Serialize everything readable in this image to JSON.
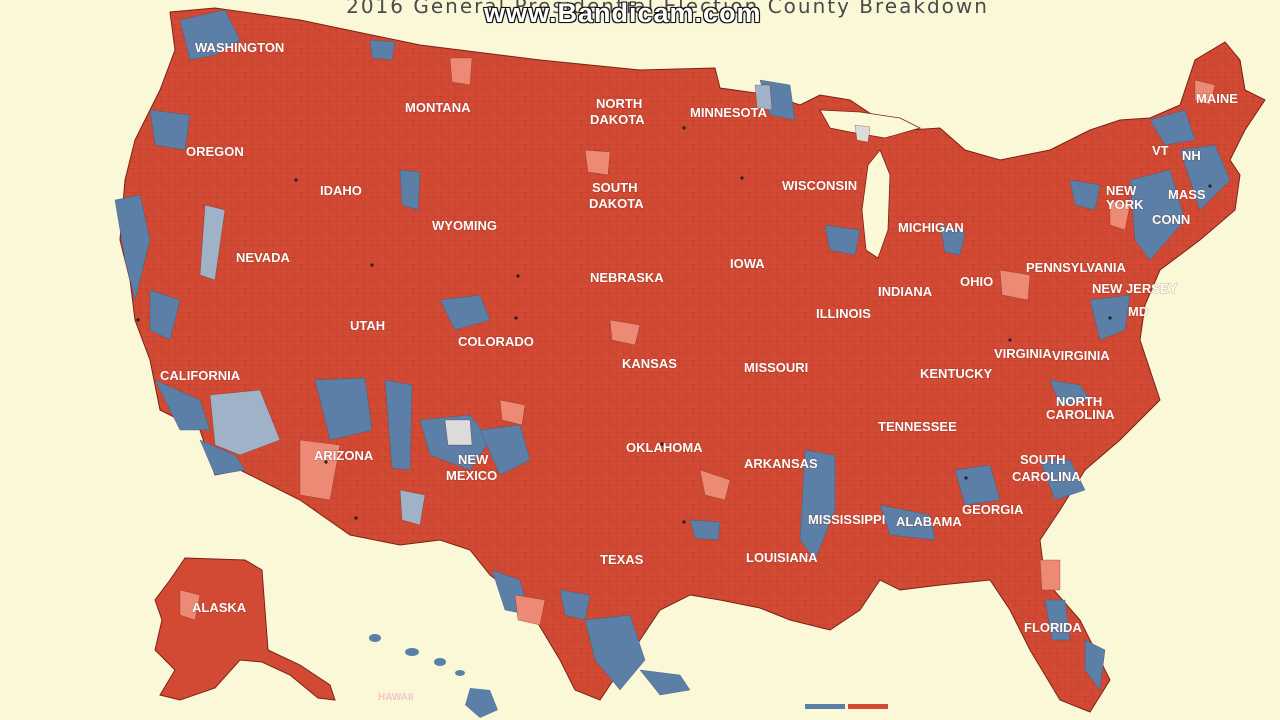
{
  "title": "2016 General Presidential Election County Breakdown",
  "watermark": "www.Bandicam.com",
  "colors": {
    "background": "#fbf8d8",
    "republican": "#d24a34",
    "republican_light": "#ec8a76",
    "democrat": "#5b7fa6",
    "democrat_light": "#9fb2c8",
    "county_line": "#7a2216"
  },
  "states": [
    {
      "label": "WASHINGTON"
    },
    {
      "label": "OREGON"
    },
    {
      "label": "IDAHO"
    },
    {
      "label": "MONTANA"
    },
    {
      "label": "NORTH"
    },
    {
      "label": "DAKOTA"
    },
    {
      "label": "SOUTH"
    },
    {
      "label": "DAKOTA"
    },
    {
      "label": "MINNESOTA"
    },
    {
      "label": "WYOMING"
    },
    {
      "label": "NEVADA"
    },
    {
      "label": "UTAH"
    },
    {
      "label": "COLORADO"
    },
    {
      "label": "NEBRASKA"
    },
    {
      "label": "KANSAS"
    },
    {
      "label": "IOWA"
    },
    {
      "label": "WISCONSIN"
    },
    {
      "label": "MICHIGAN"
    },
    {
      "label": "ILLINOIS"
    },
    {
      "label": "INDIANA"
    },
    {
      "label": "OHIO"
    },
    {
      "label": "MISSOURI"
    },
    {
      "label": "KENTUCKY"
    },
    {
      "label": "CALIFORNIA"
    },
    {
      "label": "ARIZONA"
    },
    {
      "label": "NEW"
    },
    {
      "label": "MEXICO"
    },
    {
      "label": "OKLAHOMA"
    },
    {
      "label": "TEXAS"
    },
    {
      "label": "ARKANSAS"
    },
    {
      "label": "LOUISIANA"
    },
    {
      "label": "MISSISSIPPI"
    },
    {
      "label": "ALABAMA"
    },
    {
      "label": "GEORGIA"
    },
    {
      "label": "TENNESSEE"
    },
    {
      "label": "NORTH"
    },
    {
      "label": "CAROLINA"
    },
    {
      "label": "SOUTH"
    },
    {
      "label": "CAROLINA"
    },
    {
      "label": "VIRGINIA"
    },
    {
      "label": "VIRGINIA"
    },
    {
      "label": "FLORIDA"
    },
    {
      "label": "PENNSYLVANIA"
    },
    {
      "label": "NEW"
    },
    {
      "label": "YORK"
    },
    {
      "label": "MAINE"
    },
    {
      "label": "VT"
    },
    {
      "label": "NH"
    },
    {
      "label": "MASS"
    },
    {
      "label": "CONN"
    },
    {
      "label": "NEW JERSEY"
    },
    {
      "label": "MD"
    },
    {
      "label": "ALASKA"
    },
    {
      "label": "HAWAII"
    }
  ]
}
